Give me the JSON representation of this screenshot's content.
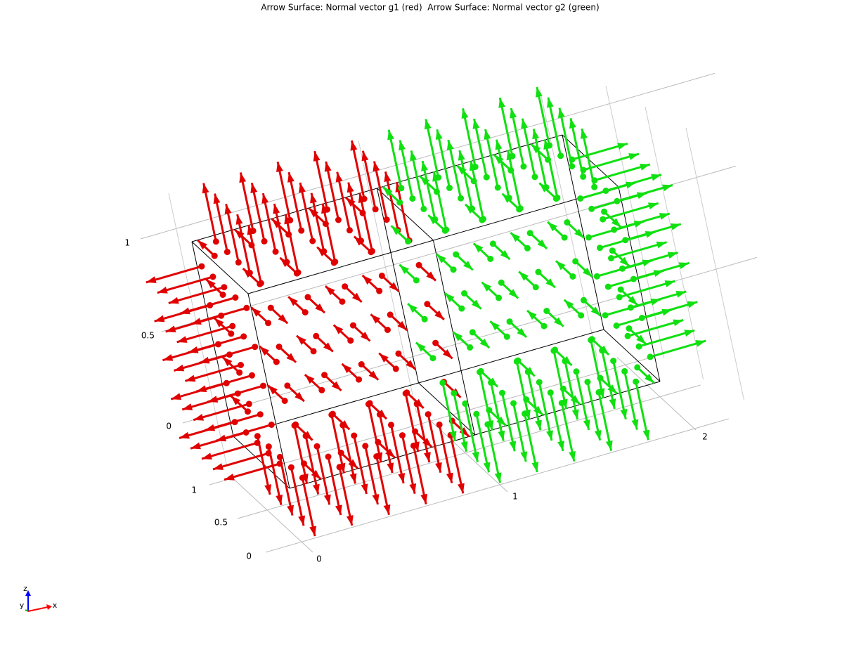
{
  "title": "Arrow Surface: Normal vector g1 (red)  Arrow Surface: Normal vector g2 (green)",
  "z_axis": {
    "ticks": [
      1,
      0.5,
      0
    ]
  },
  "y_axis": {
    "ticks": [
      1,
      0.5,
      0
    ]
  },
  "x_axis": {
    "ticks": [
      0,
      1,
      2
    ]
  },
  "triad": {
    "labels": [
      "z",
      "y",
      "x"
    ]
  }
}
